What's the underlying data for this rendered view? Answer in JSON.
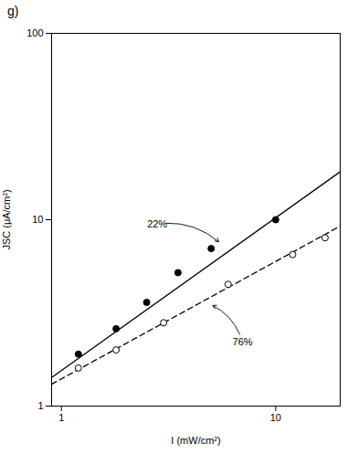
{
  "chart_data": {
    "type": "scatter",
    "title": "g)",
    "xlabel": "I (mW/cm²)",
    "ylabel": "JSC (μA/cm²)",
    "log": true,
    "xlim": [
      0.9,
      20
    ],
    "ylim": [
      1,
      100
    ],
    "xticks": [
      1,
      10
    ],
    "yticks": [
      1,
      10,
      100
    ],
    "grid": false,
    "series": [
      {
        "type": "line",
        "line_style": "solid",
        "color": "#000000",
        "x": [
          0.9,
          20
        ],
        "values": [
          1.421708,
          18.07908
        ]
      },
      {
        "type": "line",
        "line_style": "dashed",
        "color": "#000000",
        "x": [
          0.9,
          20
        ],
        "values": [
          1.310089,
          9.242233
        ]
      },
      {
        "type": "scatter",
        "marker": "filled circle",
        "color": "#000000",
        "x": [
          1.2,
          1.8,
          2.5,
          3.5,
          5.0,
          10.0
        ],
        "values": [
          1.9,
          2.6,
          3.6,
          5.2,
          7.0,
          10.0
        ]
      },
      {
        "type": "scatter",
        "marker": "open circle",
        "color": "#000000",
        "x": [
          1.2,
          1.8,
          3.0,
          6.0,
          12.0,
          17.0
        ],
        "values": [
          1.6,
          2.0,
          2.8,
          4.5,
          6.5,
          8.0
        ]
      }
    ],
    "annotations": [
      {
        "text": "22%",
        "x": 2.8,
        "y": 9.5,
        "arrow_to": [
          5.5,
          7.5
        ]
      },
      {
        "text": "76%",
        "x": 7.0,
        "y": 2.2,
        "arrow_to": [
          5.0,
          3.5
        ]
      }
    ]
  }
}
